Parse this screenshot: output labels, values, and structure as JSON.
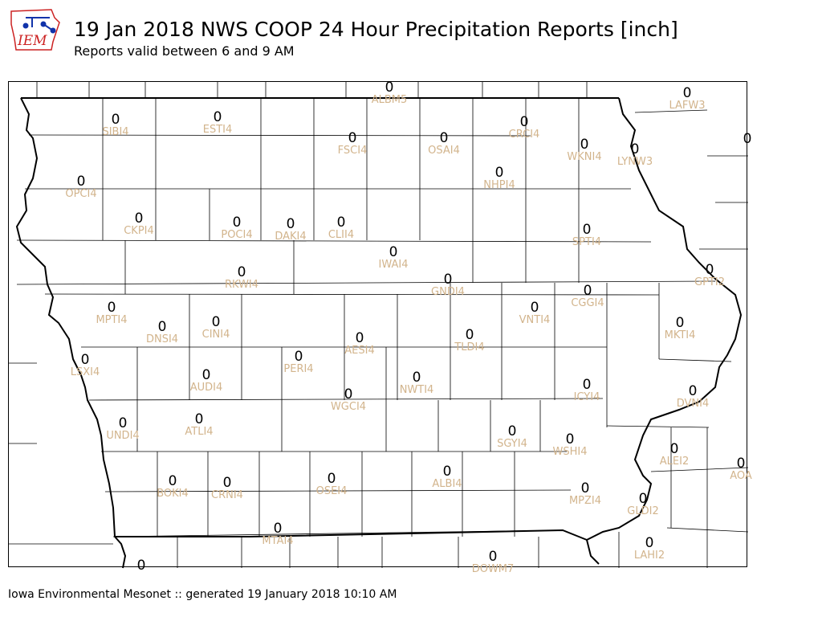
{
  "header": {
    "logo_text": "IEM",
    "title": "19 Jan 2018 NWS COOP 24 Hour Precipitation Reports [inch]",
    "subtitle": "Reports valid between 6 and 9 AM"
  },
  "footer": {
    "text": "Iowa Environmental Mesonet :: generated 19 January 2018 10:10 AM"
  },
  "stations": [
    {
      "id": "ALBM5",
      "value": "0"
    },
    {
      "id": "LAFW3",
      "value": "0"
    },
    {
      "id": "SIBI4",
      "value": "0"
    },
    {
      "id": "ESTI4",
      "value": "0"
    },
    {
      "id": "FSCI4",
      "value": "0"
    },
    {
      "id": "OSAI4",
      "value": "0"
    },
    {
      "id": "CRCI4",
      "value": "0"
    },
    {
      "id": "WKNI4",
      "value": "0"
    },
    {
      "id": "LYNW3",
      "value": "0"
    },
    {
      "id": "OPCI4",
      "value": "0"
    },
    {
      "id": "NHPI4",
      "value": "0"
    },
    {
      "id": "CKPI4",
      "value": "0"
    },
    {
      "id": "POCI4",
      "value": "0"
    },
    {
      "id": "DAKI4",
      "value": "0"
    },
    {
      "id": "CLII4",
      "value": "0"
    },
    {
      "id": "SPTI4",
      "value": "0"
    },
    {
      "id": "IWAI4",
      "value": "0"
    },
    {
      "id": "RKWI4",
      "value": "0"
    },
    {
      "id": "GPTI2",
      "value": "0"
    },
    {
      "id": "GNDI4",
      "value": "0"
    },
    {
      "id": "CGGI4",
      "value": "0"
    },
    {
      "id": "MPTI4",
      "value": "0"
    },
    {
      "id": "VNTI4",
      "value": "0"
    },
    {
      "id": "CINI4",
      "value": "0"
    },
    {
      "id": "DNSI4",
      "value": "0"
    },
    {
      "id": "MKTI4",
      "value": "0"
    },
    {
      "id": "AESI4",
      "value": "0"
    },
    {
      "id": "TLDI4",
      "value": "0"
    },
    {
      "id": "LSXI4",
      "value": "0"
    },
    {
      "id": "PERI4",
      "value": "0"
    },
    {
      "id": "AUDI4",
      "value": "0"
    },
    {
      "id": "NWTI4",
      "value": "0"
    },
    {
      "id": "ICYI4",
      "value": "0"
    },
    {
      "id": "WGCI4",
      "value": "0"
    },
    {
      "id": "DVNI4",
      "value": "0"
    },
    {
      "id": "UNDI4",
      "value": "0"
    },
    {
      "id": "ATLI4",
      "value": "0"
    },
    {
      "id": "SGYI4",
      "value": "0"
    },
    {
      "id": "WSHI4",
      "value": "0"
    },
    {
      "id": "ALEI2",
      "value": "0"
    },
    {
      "id": "AOA",
      "value": "0"
    },
    {
      "id": "BOKI4",
      "value": "0"
    },
    {
      "id": "CRNI4",
      "value": "0"
    },
    {
      "id": "OSEI4",
      "value": "0"
    },
    {
      "id": "ALBI4",
      "value": "0"
    },
    {
      "id": "MPZI4",
      "value": "0"
    },
    {
      "id": "GLDI2",
      "value": "0"
    },
    {
      "id": "MTAI4",
      "value": "0"
    },
    {
      "id": "LAHI2",
      "value": "0"
    },
    {
      "id": "DOWM7",
      "value": "0"
    },
    {
      "id": "",
      "value": "0"
    },
    {
      "id": "",
      "value": "0"
    }
  ],
  "colors": {
    "station_id": "#d2b48c",
    "value": "#000000",
    "boundary": "#000000",
    "logo_red": "#cc2222",
    "logo_blue": "#1133aa"
  }
}
